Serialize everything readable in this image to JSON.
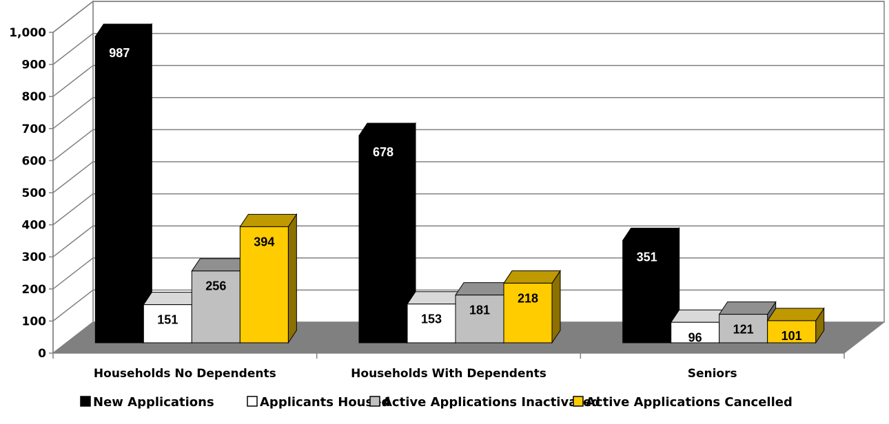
{
  "chart_data": {
    "type": "bar",
    "categories": [
      "Households No Dependents",
      "Households With Dependents",
      "Seniors"
    ],
    "series": [
      {
        "name": "New Applications",
        "values": [
          987,
          678,
          351
        ]
      },
      {
        "name": "Applicants Housed",
        "values": [
          151,
          153,
          96
        ]
      },
      {
        "name": "Active Applications Inactivated",
        "values": [
          256,
          181,
          121
        ]
      },
      {
        "name": "Active Applications Cancelled",
        "values": [
          394,
          218,
          101
        ]
      }
    ],
    "y_ticks": [
      "0",
      "100",
      "200",
      "300",
      "400",
      "500",
      "600",
      "700",
      "800",
      "900",
      "1,000"
    ],
    "ylim": [
      0,
      1000
    ],
    "grid": true,
    "legend_position": "bottom",
    "title": "",
    "xlabel": "",
    "ylabel": "",
    "colors": {
      "New Applications": "#000000",
      "Applicants Housed": "#ffffff",
      "Active Applications Inactivated": "#c0c0c0",
      "Active Applications Cancelled": "#ffcc00"
    }
  }
}
